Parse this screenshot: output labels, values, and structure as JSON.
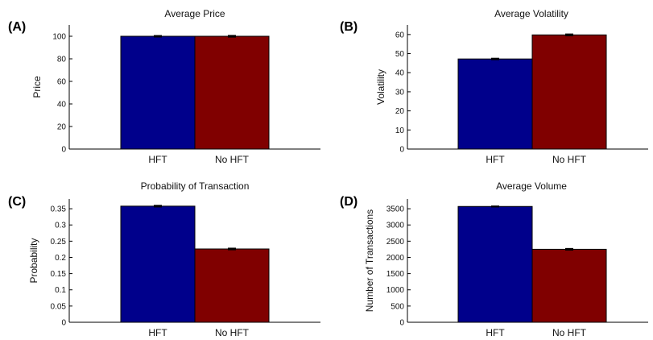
{
  "figure": {
    "panels": [
      {
        "letter": "(A)",
        "title": "Average Price"
      },
      {
        "letter": "(B)",
        "title": "Average Volatility"
      },
      {
        "letter": "(C)",
        "title": "Probability of Transaction"
      },
      {
        "letter": "(D)",
        "title": "Average Volume"
      }
    ]
  },
  "chart_data": [
    {
      "type": "bar",
      "title": "Average Price",
      "ylabel": "Price",
      "xlabel": "",
      "categories": [
        "HFT",
        "No HFT"
      ],
      "values": [
        100,
        100
      ],
      "errors": [
        0.5,
        0.6
      ],
      "colors": [
        "#00008b",
        "#800000"
      ],
      "ylim": [
        0,
        110
      ],
      "yticks": [
        0,
        20,
        40,
        60,
        80,
        100
      ],
      "ytick_labels": [
        "0",
        "20",
        "40",
        "60",
        "80",
        "100"
      ],
      "grid": false,
      "legend": "none"
    },
    {
      "type": "bar",
      "title": "Average Volatility",
      "ylabel": "Volatility",
      "xlabel": "",
      "categories": [
        "HFT",
        "No HFT"
      ],
      "values": [
        47.2,
        59.8
      ],
      "errors": [
        0.3,
        0.4
      ],
      "colors": [
        "#00008b",
        "#800000"
      ],
      "ylim": [
        0,
        65
      ],
      "yticks": [
        0,
        10,
        20,
        30,
        40,
        50,
        60
      ],
      "ytick_labels": [
        "0",
        "10",
        "20",
        "30",
        "40",
        "50",
        "60"
      ],
      "grid": false,
      "legend": "none"
    },
    {
      "type": "bar",
      "title": "Probability of Transaction",
      "ylabel": "Probability",
      "xlabel": "",
      "categories": [
        "HFT",
        "No HFT"
      ],
      "values": [
        0.358,
        0.226
      ],
      "errors": [
        0.002,
        0.002
      ],
      "colors": [
        "#00008b",
        "#800000"
      ],
      "ylim": [
        0,
        0.38
      ],
      "yticks": [
        0,
        0.05,
        0.1,
        0.15,
        0.2,
        0.25,
        0.3,
        0.35
      ],
      "ytick_labels": [
        "0",
        "0.05",
        "0.1",
        "0.15",
        "0.2",
        "0.25",
        "0.3",
        "0.35"
      ],
      "grid": false,
      "legend": "none"
    },
    {
      "type": "bar",
      "title": "Average Volume",
      "ylabel": "Number of Transactions",
      "xlabel": "",
      "categories": [
        "HFT",
        "No HFT"
      ],
      "values": [
        3570,
        2250
      ],
      "errors": [
        10,
        20
      ],
      "colors": [
        "#00008b",
        "#800000"
      ],
      "ylim": [
        0,
        3800
      ],
      "yticks": [
        0,
        500,
        1000,
        1500,
        2000,
        2500,
        3000,
        3500
      ],
      "ytick_labels": [
        "0",
        "500",
        "1000",
        "1500",
        "2000",
        "2500",
        "3000",
        "3500"
      ],
      "grid": false,
      "legend": "none"
    }
  ]
}
